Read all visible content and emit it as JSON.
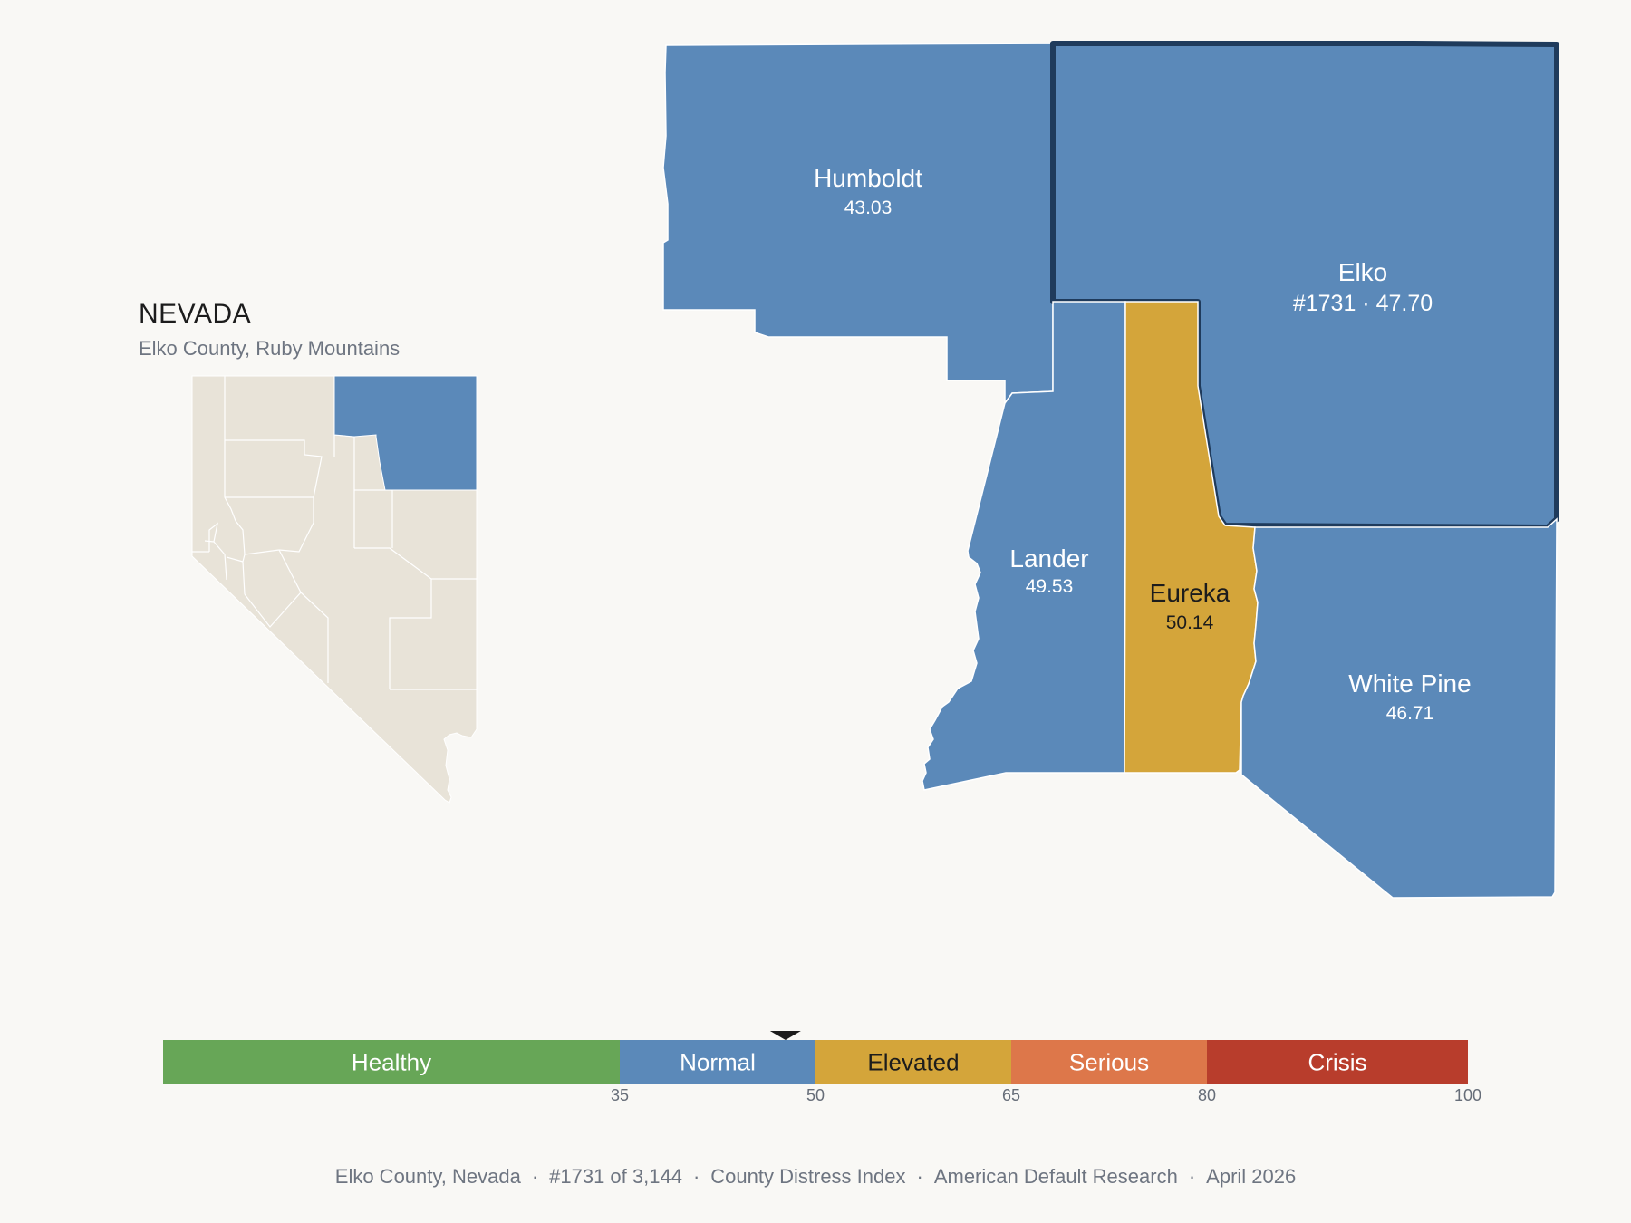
{
  "inset": {
    "title": "NEVADA",
    "subtitle": "Elko County, Ruby Mountains"
  },
  "colors": {
    "background": "#f9f8f5",
    "normal": "#5b89b9",
    "elevated": "#d4a53a",
    "healthy": "#67a657",
    "serious": "#dd774a",
    "crisis": "#b83d2c",
    "inset_fill": "#e8e3d8",
    "highlight_outline": "#1f3b5c"
  },
  "counties": {
    "humboldt": {
      "name": "Humboldt",
      "value": "43.03",
      "band": "normal"
    },
    "elko": {
      "name": "Elko",
      "value": "#1731 · 47.70",
      "band": "normal",
      "selected": true
    },
    "lander": {
      "name": "Lander",
      "value": "49.53",
      "band": "normal"
    },
    "eureka": {
      "name": "Eureka",
      "value": "50.14",
      "band": "elevated"
    },
    "white_pine": {
      "name": "White Pine",
      "value": "46.71",
      "band": "normal"
    }
  },
  "scale": {
    "min": 0,
    "max": 100,
    "marker_value": 47.7,
    "segments": [
      {
        "label": "Healthy",
        "from": 0,
        "to": 35,
        "color": "#67a657",
        "text_color": "#ffffff"
      },
      {
        "label": "Normal",
        "from": 35,
        "to": 50,
        "color": "#5b89b9",
        "text_color": "#ffffff"
      },
      {
        "label": "Elevated",
        "from": 50,
        "to": 65,
        "color": "#d4a53a",
        "text_color": "#1c1c1c"
      },
      {
        "label": "Serious",
        "from": 65,
        "to": 80,
        "color": "#dd774a",
        "text_color": "#ffffff"
      },
      {
        "label": "Crisis",
        "from": 80,
        "to": 100,
        "color": "#b83d2c",
        "text_color": "#ffffff"
      }
    ],
    "ticks": [
      "35",
      "50",
      "65",
      "80",
      "100"
    ]
  },
  "footer": {
    "county": "Elko County, Nevada",
    "rank": "#1731 of 3,144",
    "index": "County Distress Index",
    "source": "American Default Research",
    "date": "April 2026"
  }
}
